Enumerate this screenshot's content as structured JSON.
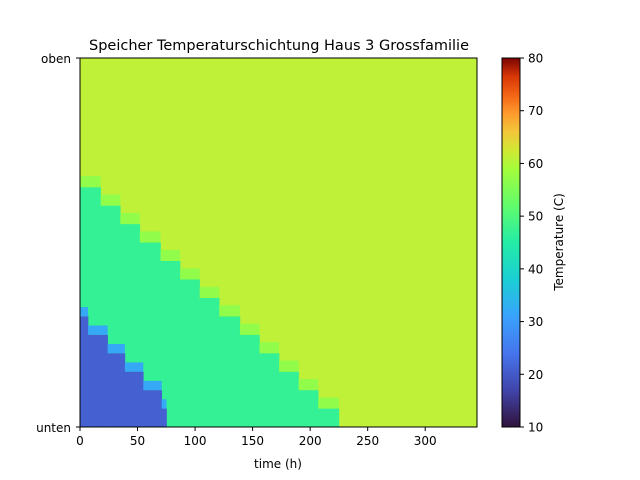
{
  "chart_data": {
    "type": "heatmap",
    "title": "Speicher Temperaturschichtung Haus 3 Grossfamilie",
    "xlabel": "time (h)",
    "ylabel_top": "oben",
    "ylabel_bottom": "unten",
    "xlim": [
      0,
      345
    ],
    "xticks": [
      0,
      50,
      100,
      150,
      200,
      250,
      300
    ],
    "colorbar": {
      "label": "Temperature (C)",
      "range": [
        10,
        80
      ],
      "ticks": [
        10,
        20,
        30,
        40,
        50,
        60,
        70,
        80
      ],
      "colormap": "turbo"
    },
    "layer_count": 20,
    "regions": {
      "hot_temperature": 61,
      "warm_temperature": 47,
      "cold_temperature": 21,
      "warm_front": [
        {
          "t": 0,
          "layer": 12
        },
        {
          "t": 18,
          "layer": 11
        },
        {
          "t": 35,
          "layer": 10
        },
        {
          "t": 52,
          "layer": 9
        },
        {
          "t": 70,
          "layer": 8
        },
        {
          "t": 87,
          "layer": 7
        },
        {
          "t": 104,
          "layer": 6
        },
        {
          "t": 121,
          "layer": 5
        },
        {
          "t": 139,
          "layer": 4
        },
        {
          "t": 156,
          "layer": 3
        },
        {
          "t": 173,
          "layer": 2
        },
        {
          "t": 190,
          "layer": 1
        },
        {
          "t": 207,
          "layer": 0
        }
      ],
      "cold_front": [
        {
          "t": 0,
          "layer": 5
        },
        {
          "t": 7,
          "layer": 4
        },
        {
          "t": 24,
          "layer": 3
        },
        {
          "t": 39,
          "layer": 2
        },
        {
          "t": 55,
          "layer": 1
        },
        {
          "t": 71,
          "layer": 0
        }
      ]
    }
  }
}
